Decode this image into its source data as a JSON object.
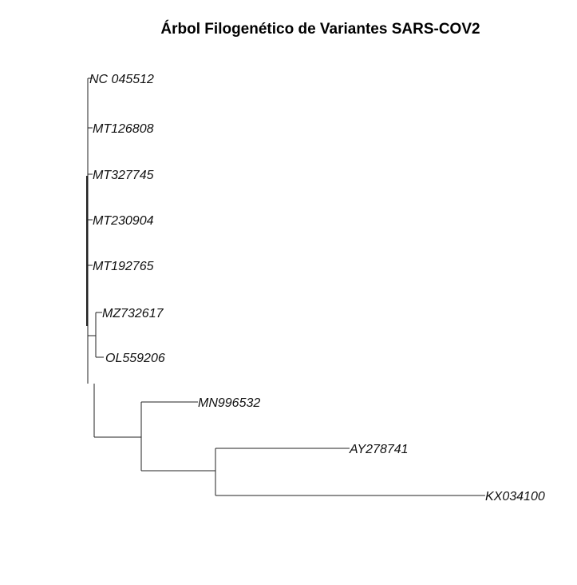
{
  "title": "Árbol Filogenético de Variantes SARS-COV2",
  "tree": {
    "name": "root",
    "children": [
      {
        "name": "NC 045512"
      },
      {
        "name": "MT126808"
      },
      {
        "name": "MT327745"
      },
      {
        "name": "MT230904"
      },
      {
        "name": "MT192765"
      },
      {
        "name": "MZ732617"
      },
      {
        "name": "OL559206"
      },
      {
        "name": "MN996532"
      },
      {
        "name": "AY278741"
      },
      {
        "name": "KX034100"
      }
    ]
  }
}
